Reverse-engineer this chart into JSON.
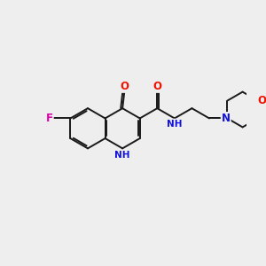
{
  "bg_color": "#eeeeee",
  "bond_color": "#1a1a1a",
  "bond_width": 1.4,
  "atom_colors": {
    "F": "#dd00aa",
    "O": "#ee1100",
    "N": "#1111dd",
    "C": "#1a1a1a"
  },
  "font_size": 8.5,
  "fig_size": [
    3.0,
    3.0
  ],
  "dpi": 100
}
